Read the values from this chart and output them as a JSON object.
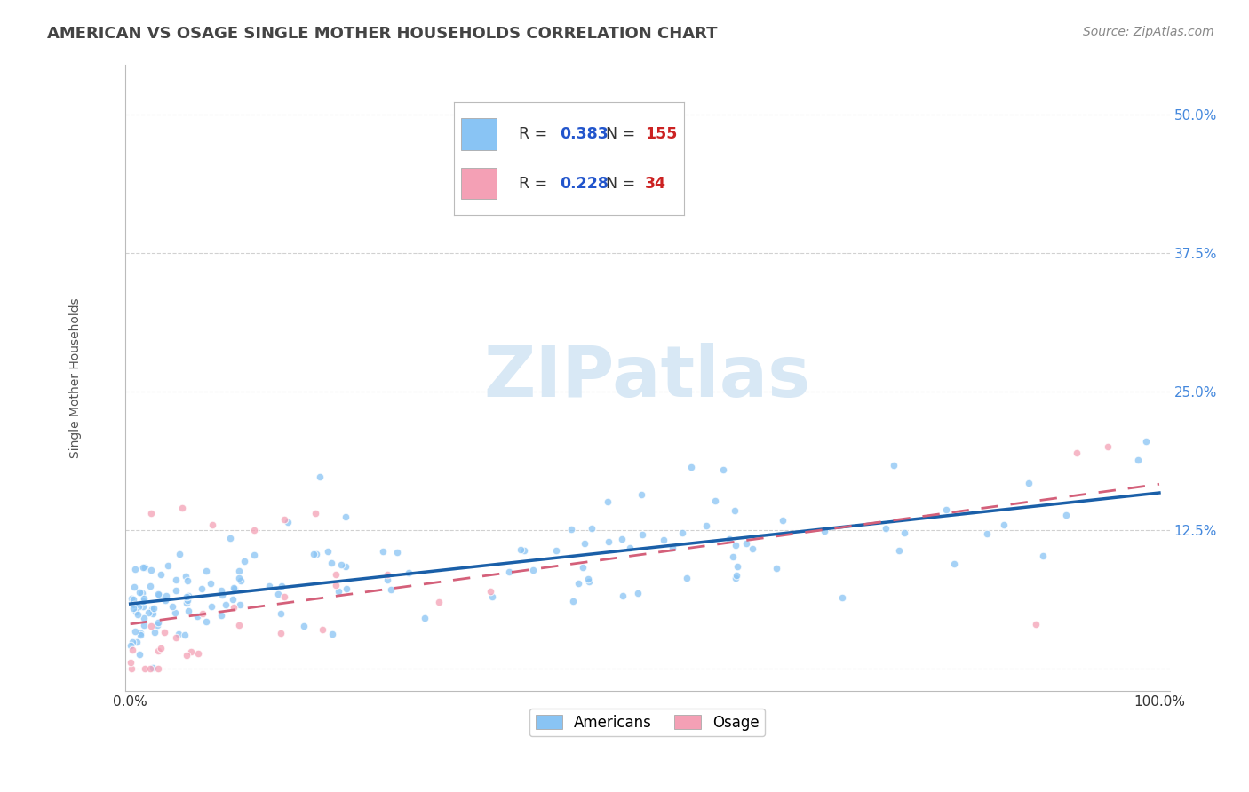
{
  "title": "AMERICAN VS OSAGE SINGLE MOTHER HOUSEHOLDS CORRELATION CHART",
  "source": "Source: ZipAtlas.com",
  "ylabel": "Single Mother Households",
  "americans_R": 0.383,
  "americans_N": 155,
  "osage_R": 0.228,
  "osage_N": 34,
  "americans_color": "#89c4f4",
  "osage_color": "#f4a0b5",
  "americans_line_color": "#1a5fa8",
  "osage_line_color": "#d4607a",
  "watermark_color": "#d8e8f5",
  "background_color": "#ffffff",
  "grid_color": "#cccccc",
  "title_color": "#444444",
  "title_fontsize": 13,
  "source_fontsize": 10,
  "ylabel_fontsize": 10,
  "scatter_alpha": 0.75,
  "scatter_size": 38,
  "legend_R_color": "#2255cc",
  "legend_N_color": "#cc2222"
}
